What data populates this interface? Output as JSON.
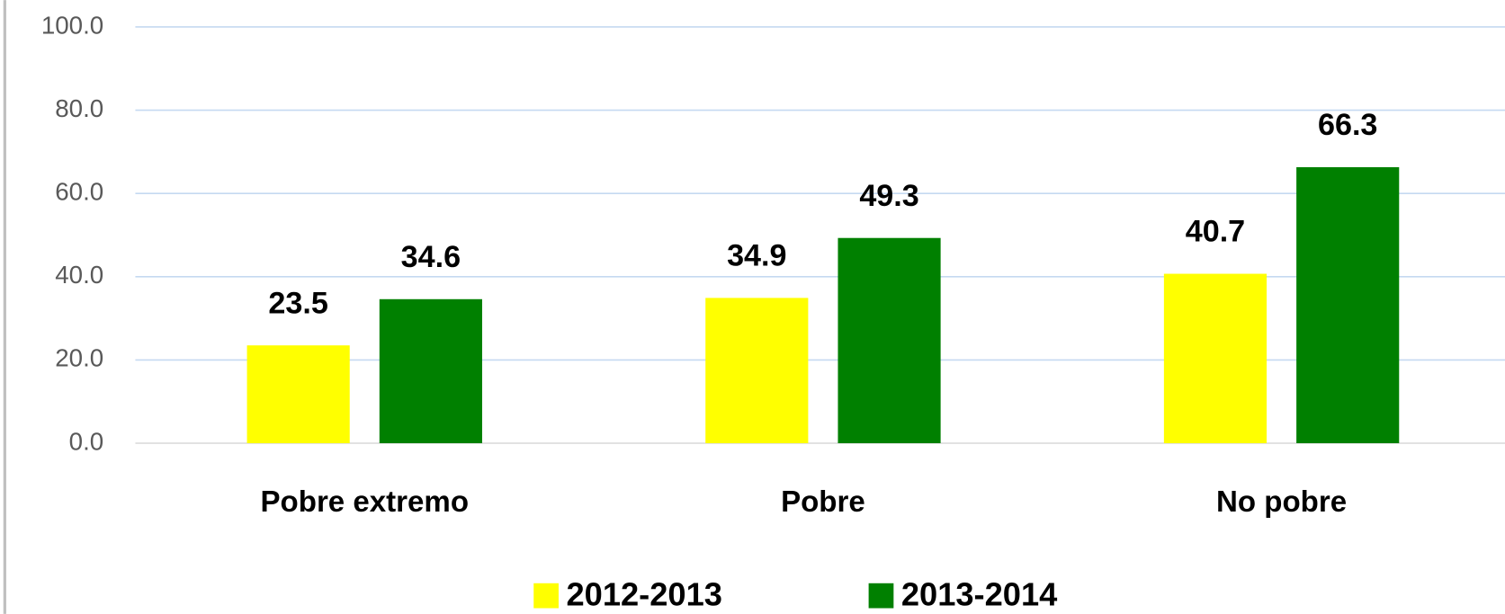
{
  "chart_data": {
    "type": "bar",
    "categories": [
      "Pobre extremo",
      "Pobre",
      "No pobre"
    ],
    "series": [
      {
        "name": "2012-2013",
        "color": "#ffff00",
        "values": [
          23.5,
          34.9,
          40.7
        ]
      },
      {
        "name": "2013-2014",
        "color": "#008000",
        "values": [
          34.6,
          49.3,
          66.3
        ]
      }
    ],
    "ylim": [
      0,
      100
    ],
    "yticks": [
      {
        "value": 0,
        "label": "0.0"
      },
      {
        "value": 20,
        "label": "20.0"
      },
      {
        "value": 40,
        "label": "40.0"
      },
      {
        "value": 60,
        "label": "60.0"
      },
      {
        "value": 80,
        "label": "80.0"
      },
      {
        "value": 100,
        "label": "100.0"
      }
    ],
    "grid": true,
    "legend": "bottom"
  }
}
